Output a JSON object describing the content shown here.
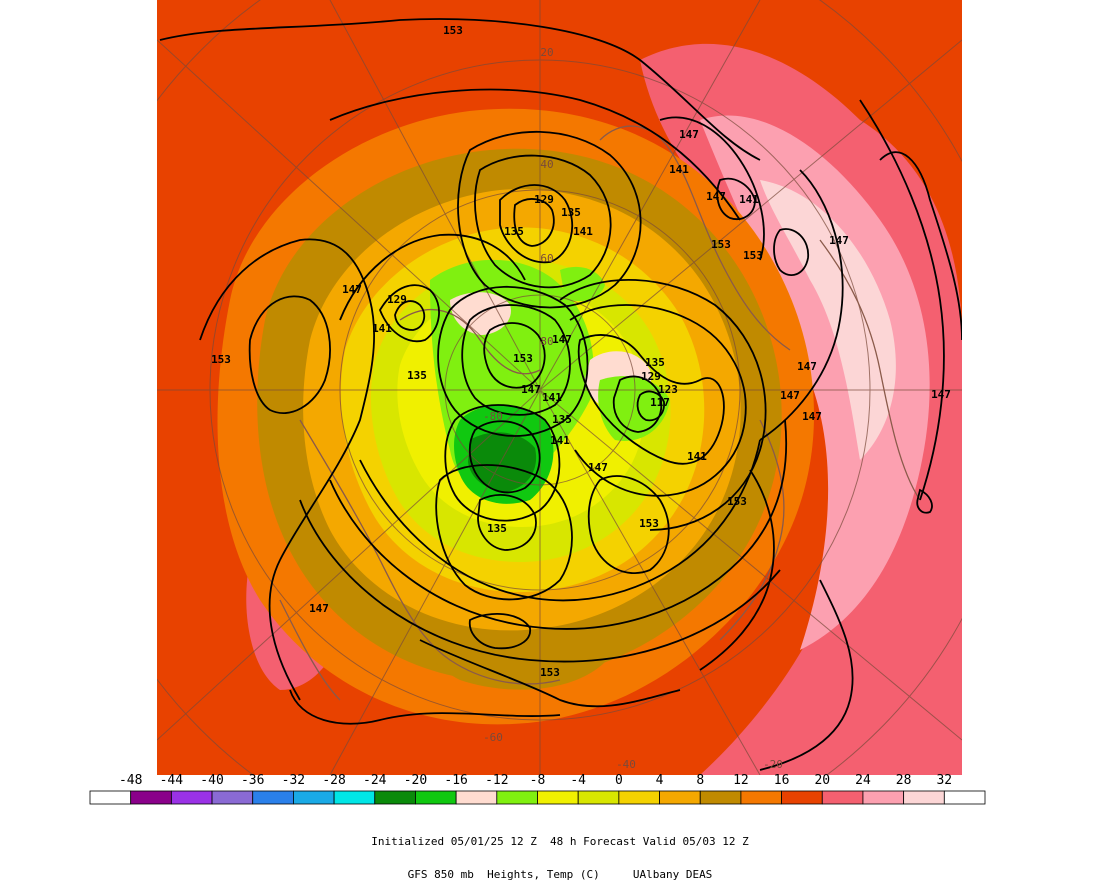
{
  "map": {
    "projection": "polar-stereographic",
    "level": "850 mb",
    "field": "Heights, Temp (C)"
  },
  "colorbar": {
    "ticks": [
      "-48",
      "-44",
      "-40",
      "-36",
      "-32",
      "-28",
      "-24",
      "-20",
      "-16",
      "-12",
      "-8",
      "-4",
      "0",
      "4",
      "8",
      "12",
      "16",
      "20",
      "24",
      "28",
      "32"
    ],
    "colors": [
      "#ffffff",
      "#8a008a",
      "#9a32e6",
      "#8a6ad4",
      "#2a80ea",
      "#1aaae6",
      "#00e6e6",
      "#0a8a0a",
      "#10c810",
      "#ffdcd0",
      "#80f010",
      "#f0f000",
      "#d8e600",
      "#f4d200",
      "#f4a800",
      "#c08a00",
      "#f47800",
      "#e84200",
      "#f46070",
      "#fca0b0",
      "#fcd6d6",
      "#ffffff"
    ]
  },
  "contour_labels": [
    {
      "text": "153",
      "lon": "w",
      "id": "c1"
    },
    {
      "text": "147"
    },
    {
      "text": "141"
    },
    {
      "text": "147"
    },
    {
      "text": "141"
    },
    {
      "text": "153"
    },
    {
      "text": "153"
    },
    {
      "text": "147"
    },
    {
      "text": "129"
    },
    {
      "text": "135"
    },
    {
      "text": "135"
    },
    {
      "text": "141"
    },
    {
      "text": "147"
    },
    {
      "text": "129"
    },
    {
      "text": "141"
    },
    {
      "text": "153"
    },
    {
      "text": "135"
    },
    {
      "text": "153"
    },
    {
      "text": "147"
    },
    {
      "text": "141"
    },
    {
      "text": "147"
    },
    {
      "text": "135"
    },
    {
      "text": "135"
    },
    {
      "text": "129"
    },
    {
      "text": "123"
    },
    {
      "text": "117"
    },
    {
      "text": "141"
    },
    {
      "text": "141"
    },
    {
      "text": "147"
    },
    {
      "text": "153"
    },
    {
      "text": "135"
    },
    {
      "text": "153"
    },
    {
      "text": "147"
    },
    {
      "text": "147"
    },
    {
      "text": "147"
    },
    {
      "text": "147"
    },
    {
      "text": "147"
    },
    {
      "text": "153"
    }
  ],
  "lat_labels": [
    "20",
    "40",
    "60",
    "80",
    "-80",
    "-60",
    "-40",
    "-20"
  ],
  "caption": {
    "line1": "Initialized 05/01/25 12 Z  48 h Forecast Valid 05/03 12 Z",
    "line2": "GFS 850 mb  Heights, Temp (C)     UAlbany DEAS"
  }
}
